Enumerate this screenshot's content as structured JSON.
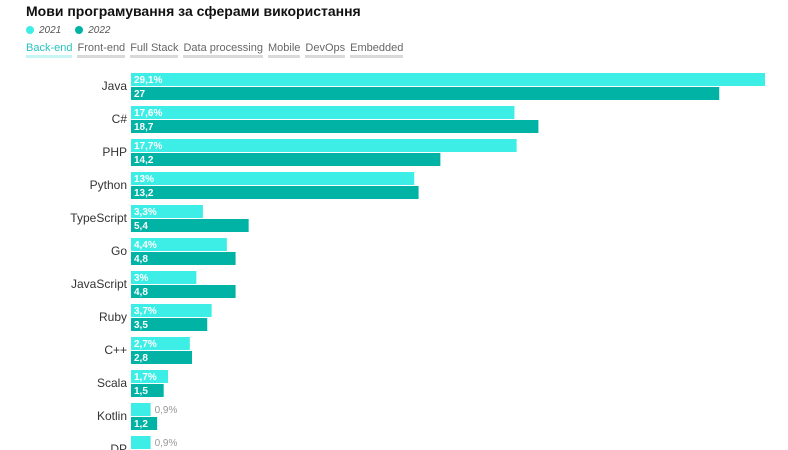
{
  "title": "Мови програмування за сферами використання",
  "legend": [
    {
      "label": "2021",
      "color": "#3deee6"
    },
    {
      "label": "2022",
      "color": "#00b3a5"
    }
  ],
  "tabs": [
    "Back-end",
    "Front-end",
    "Full Stack",
    "Data processing",
    "Mobile",
    "DevOps",
    "Embedded"
  ],
  "active_tab": "Back-end",
  "chart_data": {
    "type": "bar",
    "orientation": "horizontal",
    "categories": [
      "Java",
      "C#",
      "PHP",
      "Python",
      "TypeScript",
      "Go",
      "JavaScript",
      "Ruby",
      "C++",
      "Scala",
      "Kotlin",
      "DP"
    ],
    "series": [
      {
        "name": "2021",
        "color": "#3deee6",
        "values": [
          29.1,
          17.6,
          17.7,
          13,
          3.3,
          4.4,
          3,
          3.7,
          2.7,
          1.7,
          0.9,
          0.9
        ],
        "labels": [
          "29,1%",
          "17,6%",
          "17,7%",
          "13%",
          "3,3%",
          "4,4%",
          "3%",
          "3,7%",
          "2,7%",
          "1,7%",
          "0,9%",
          "0,9%"
        ]
      },
      {
        "name": "2022",
        "color": "#00b3a5",
        "values": [
          27,
          18.7,
          14.2,
          13.2,
          5.4,
          4.8,
          4.8,
          3.5,
          2.8,
          1.5,
          1.2,
          null
        ],
        "labels": [
          "27",
          "18,7",
          "14,2",
          "13,2",
          "5,4",
          "4,8",
          "4,8",
          "3,5",
          "2,8",
          "1,5",
          "1,2",
          ""
        ]
      }
    ],
    "xlim": [
      0,
      29.1
    ],
    "grid": false,
    "legend_position": "top-left"
  }
}
